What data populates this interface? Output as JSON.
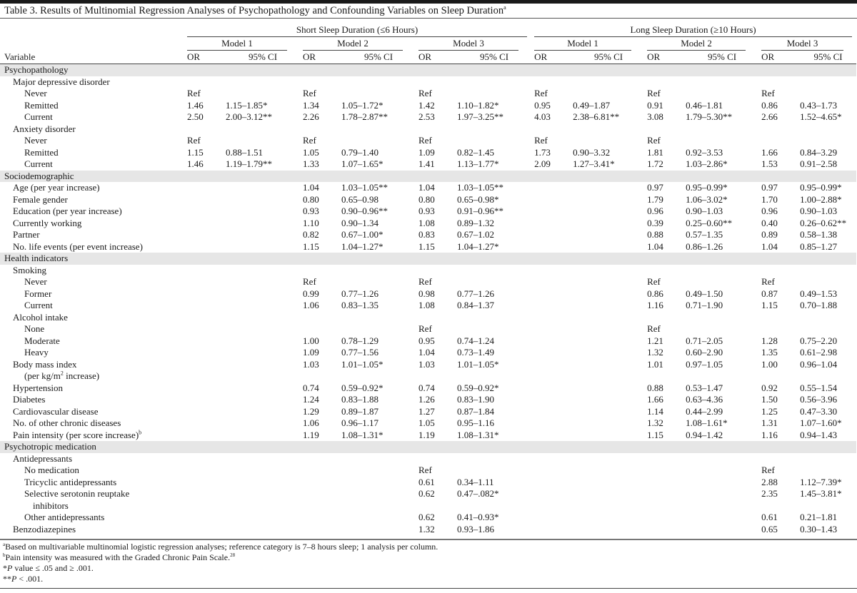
{
  "title": {
    "text": "Table 3. Results of Multinomial Regression Analyses of Psychopathology and Confounding Variables on Sleep Duration",
    "sup": "a"
  },
  "header": {
    "groups": [
      "Short Sleep Duration (≤6 Hours)",
      "Long Sleep Duration (≥10 Hours)"
    ],
    "models": [
      "Model 1",
      "Model 2",
      "Model 3",
      "Model 1",
      "Model 2",
      "Model 3"
    ],
    "variable": "Variable",
    "or": "OR",
    "ci": "95% CI"
  },
  "rows": [
    {
      "label": "Psychopathology",
      "level": 0,
      "section": true,
      "v": [
        "",
        "",
        "",
        "",
        "",
        "",
        "",
        "",
        "",
        "",
        "",
        ""
      ]
    },
    {
      "label": "Major depressive disorder",
      "level": 1,
      "v": [
        "",
        "",
        "",
        "",
        "",
        "",
        "",
        "",
        "",
        "",
        "",
        ""
      ]
    },
    {
      "label": "Never",
      "level": 2,
      "v": [
        "Ref",
        "",
        "Ref",
        "",
        "Ref",
        "",
        "Ref",
        "",
        "Ref",
        "",
        "Ref",
        ""
      ]
    },
    {
      "label": "Remitted",
      "level": 2,
      "v": [
        "1.46",
        "1.15–1.85*",
        "1.34",
        "1.05–1.72*",
        "1.42",
        "1.10–1.82*",
        "0.95",
        "0.49–1.87",
        "0.91",
        "0.46–1.81",
        "0.86",
        "0.43–1.73"
      ]
    },
    {
      "label": "Current",
      "level": 2,
      "v": [
        "2.50",
        "2.00–3.12**",
        "2.26",
        "1.78–2.87**",
        "2.53",
        "1.97–3.25**",
        "4.03",
        "2.38–6.81**",
        "3.08",
        "1.79–5.30**",
        "2.66",
        "1.52–4.65*"
      ]
    },
    {
      "label": "Anxiety disorder",
      "level": 1,
      "v": [
        "",
        "",
        "",
        "",
        "",
        "",
        "",
        "",
        "",
        "",
        "",
        ""
      ]
    },
    {
      "label": "Never",
      "level": 2,
      "v": [
        "Ref",
        "",
        "Ref",
        "",
        "Ref",
        "",
        "Ref",
        "",
        "Ref",
        "",
        "",
        ""
      ]
    },
    {
      "label": "Remitted",
      "level": 2,
      "v": [
        "1.15",
        "0.88–1.51",
        "1.05",
        "0.79–1.40",
        "1.09",
        "0.82–1.45",
        "1.73",
        "0.90–3.32",
        "1.81",
        "0.92–3.53",
        "1.66",
        "0.84–3.29"
      ]
    },
    {
      "label": "Current",
      "level": 2,
      "v": [
        "1.46",
        "1.19–1.79**",
        "1.33",
        "1.07–1.65*",
        "1.41",
        "1.13–1.77*",
        "2.09",
        "1.27–3.41*",
        "1.72",
        "1.03–2.86*",
        "1.53",
        "0.91–2.58"
      ]
    },
    {
      "label": "Sociodemographic",
      "level": 0,
      "section": true,
      "v": [
        "",
        "",
        "",
        "",
        "",
        "",
        "",
        "",
        "",
        "",
        "",
        ""
      ]
    },
    {
      "label": "Age (per year increase)",
      "level": 1,
      "v": [
        "",
        "",
        "1.04",
        "1.03–1.05**",
        "1.04",
        "1.03–1.05**",
        "",
        "",
        "0.97",
        "0.95–0.99*",
        "0.97",
        "0.95–0.99*"
      ]
    },
    {
      "label": "Female gender",
      "level": 1,
      "v": [
        "",
        "",
        "0.80",
        "0.65–0.98",
        "0.80",
        "0.65–0.98*",
        "",
        "",
        "1.79",
        "1.06–3.02*",
        "1.70",
        "1.00–2.88*"
      ]
    },
    {
      "label": "Education (per year increase)",
      "level": 1,
      "v": [
        "",
        "",
        "0.93",
        "0.90–0.96**",
        "0.93",
        "0.91–0.96**",
        "",
        "",
        "0.96",
        "0.90–1.03",
        "0.96",
        "0.90–1.03"
      ]
    },
    {
      "label": "Currently working",
      "level": 1,
      "v": [
        "",
        "",
        "1.10",
        "0.90–1.34",
        "1.08",
        "0.89–1.32",
        "",
        "",
        "0.39",
        "0.25–0.60**",
        "0.40",
        "0.26–0.62**"
      ]
    },
    {
      "label": "Partner",
      "level": 1,
      "v": [
        "",
        "",
        "0.82",
        "0.67–1.00*",
        "0.83",
        "0.67–1.02",
        "",
        "",
        "0.88",
        "0.57–1.35",
        "0.89",
        "0.58–1.38"
      ]
    },
    {
      "label": "No. life events (per event increase)",
      "level": 1,
      "v": [
        "",
        "",
        "1.15",
        "1.04–1.27*",
        "1.15",
        "1.04–1.27*",
        "",
        "",
        "1.04",
        "0.86–1.26",
        "1.04",
        "0.85–1.27"
      ]
    },
    {
      "label": "Health indicators",
      "level": 0,
      "section": true,
      "v": [
        "",
        "",
        "",
        "",
        "",
        "",
        "",
        "",
        "",
        "",
        "",
        ""
      ]
    },
    {
      "label": "Smoking",
      "level": 1,
      "v": [
        "",
        "",
        "",
        "",
        "",
        "",
        "",
        "",
        "",
        "",
        "",
        ""
      ]
    },
    {
      "label": "Never",
      "level": 2,
      "v": [
        "",
        "",
        "Ref",
        "",
        "Ref",
        "",
        "",
        "",
        "Ref",
        "",
        "Ref",
        ""
      ]
    },
    {
      "label": "Former",
      "level": 2,
      "v": [
        "",
        "",
        "0.99",
        "0.77–1.26",
        "0.98",
        "0.77–1.26",
        "",
        "",
        "0.86",
        "0.49–1.50",
        "0.87",
        "0.49–1.53"
      ]
    },
    {
      "label": "Current",
      "level": 2,
      "v": [
        "",
        "",
        "1.06",
        "0.83–1.35",
        "1.08",
        "0.84–1.37",
        "",
        "",
        "1.16",
        "0.71–1.90",
        "1.15",
        "0.70–1.88"
      ]
    },
    {
      "label": "Alcohol intake",
      "level": 1,
      "v": [
        "",
        "",
        "",
        "",
        "",
        "",
        "",
        "",
        "",
        "",
        "",
        ""
      ]
    },
    {
      "label": "None",
      "level": 2,
      "v": [
        "",
        "",
        "",
        "",
        "Ref",
        "",
        "",
        "",
        "Ref",
        "",
        "",
        ""
      ]
    },
    {
      "label": "Moderate",
      "level": 2,
      "v": [
        "",
        "",
        "1.00",
        "0.78–1.29",
        "0.95",
        "0.74–1.24",
        "",
        "",
        "1.21",
        "0.71–2.05",
        "1.28",
        "0.75–2.20"
      ]
    },
    {
      "label": "Heavy",
      "level": 2,
      "v": [
        "",
        "",
        "1.09",
        "0.77–1.56",
        "1.04",
        "0.73–1.49",
        "",
        "",
        "1.32",
        "0.60–2.90",
        "1.35",
        "0.61–2.98"
      ]
    },
    {
      "label": "Body mass index",
      "level": 1,
      "v": [
        "",
        "",
        "1.03",
        "1.01–1.05*",
        "1.03",
        "1.01–1.05*",
        "",
        "",
        "1.01",
        "0.97–1.05",
        "1.00",
        "0.96–1.04"
      ]
    },
    {
      "label": "(per kg/m",
      "sup": "2",
      "after": " increase)",
      "level": 2,
      "v": [
        "",
        "",
        "",
        "",
        "",
        "",
        "",
        "",
        "",
        "",
        "",
        ""
      ]
    },
    {
      "label": "Hypertension",
      "level": 1,
      "v": [
        "",
        "",
        "0.74",
        "0.59–0.92*",
        "0.74",
        "0.59–0.92*",
        "",
        "",
        "0.88",
        "0.53–1.47",
        "0.92",
        "0.55–1.54"
      ]
    },
    {
      "label": "Diabetes",
      "level": 1,
      "v": [
        "",
        "",
        "1.24",
        "0.83–1.88",
        "1.26",
        "0.83–1.90",
        "",
        "",
        "1.66",
        "0.63–4.36",
        "1.50",
        "0.56–3.96"
      ]
    },
    {
      "label": "Cardiovascular disease",
      "level": 1,
      "v": [
        "",
        "",
        "1.29",
        "0.89–1.87",
        "1.27",
        "0.87–1.84",
        "",
        "",
        "1.14",
        "0.44–2.99",
        "1.25",
        "0.47–3.30"
      ]
    },
    {
      "label": "No. of other chronic diseases",
      "level": 1,
      "v": [
        "",
        "",
        "1.06",
        "0.96–1.17",
        "1.05",
        "0.95–1.16",
        "",
        "",
        "1.32",
        "1.08–1.61*",
        "1.31",
        "1.07–1.60*"
      ]
    },
    {
      "label": "Pain intensity (per score increase)",
      "sup": "b",
      "level": 1,
      "v": [
        "",
        "",
        "1.19",
        "1.08–1.31*",
        "1.19",
        "1.08–1.31*",
        "",
        "",
        "1.15",
        "0.94–1.42",
        "1.16",
        "0.94–1.43"
      ]
    },
    {
      "label": "Psychotropic medication",
      "level": 0,
      "section": true,
      "v": [
        "",
        "",
        "",
        "",
        "",
        "",
        "",
        "",
        "",
        "",
        "",
        ""
      ]
    },
    {
      "label": "Antidepressants",
      "level": 1,
      "v": [
        "",
        "",
        "",
        "",
        "",
        "",
        "",
        "",
        "",
        "",
        "",
        ""
      ]
    },
    {
      "label": "No medication",
      "level": 2,
      "v": [
        "",
        "",
        "",
        "",
        "Ref",
        "",
        "",
        "",
        "",
        "",
        "Ref",
        ""
      ]
    },
    {
      "label": "Tricyclic antidepressants",
      "level": 2,
      "v": [
        "",
        "",
        "",
        "",
        "0.61",
        "0.34–1.11",
        "",
        "",
        "",
        "",
        "2.88",
        "1.12–7.39*"
      ]
    },
    {
      "label": "Selective serotonin reuptake",
      "level": 2,
      "v": [
        "",
        "",
        "",
        "",
        "0.62",
        "0.47–.082*",
        "",
        "",
        "",
        "",
        "2.35",
        "1.45–3.81*"
      ]
    },
    {
      "label": "inhibitors",
      "level": 3,
      "v": [
        "",
        "",
        "",
        "",
        "",
        "",
        "",
        "",
        "",
        "",
        "",
        ""
      ]
    },
    {
      "label": "Other antidepressants",
      "level": 2,
      "v": [
        "",
        "",
        "",
        "",
        "0.62",
        "0.41–0.93*",
        "",
        "",
        "",
        "",
        "0.61",
        "0.21–1.81"
      ]
    },
    {
      "label": "Benzodiazepines",
      "level": 1,
      "v": [
        "",
        "",
        "",
        "",
        "1.32",
        "0.93–1.86",
        "",
        "",
        "",
        "",
        "0.65",
        "0.30–1.43"
      ]
    }
  ],
  "footnotes": [
    {
      "mark": "a",
      "text": "Based on multivariable multinomial logistic regression analyses; reference category is 7–8 hours sleep; 1 analysis per column."
    },
    {
      "mark": "b",
      "text": "Pain intensity was measured with the Graded Chronic Pain Scale.",
      "sup_end": "28"
    },
    {
      "prefix": "*",
      "italic": "P",
      "text": " value ≤ .05 and ≥ .001."
    },
    {
      "prefix": "**",
      "italic": "P",
      "text": " < .001."
    }
  ]
}
